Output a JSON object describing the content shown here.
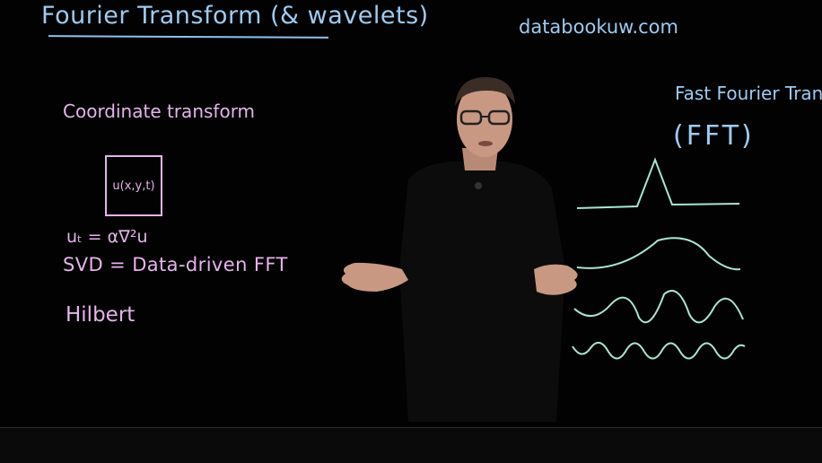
{
  "board": {
    "title": "Fourier Transform (& wavelets)",
    "website": "databookuw.com",
    "coordinate_transform": "Coordinate transform",
    "box_label": "u(x,y,t)",
    "heat_equation": "uₜ = α∇²u",
    "svd_line": "SVD = Data-driven FFT",
    "hilbert": "Hilbert",
    "fft_title": "Fast Fourier Transf.",
    "fft_abbr": "(FFT)"
  },
  "colors": {
    "background": "#000000",
    "blue_ink": "#9ccbf2",
    "pink_ink": "#e6b3ec",
    "green_ink": "#a9e6cf"
  }
}
